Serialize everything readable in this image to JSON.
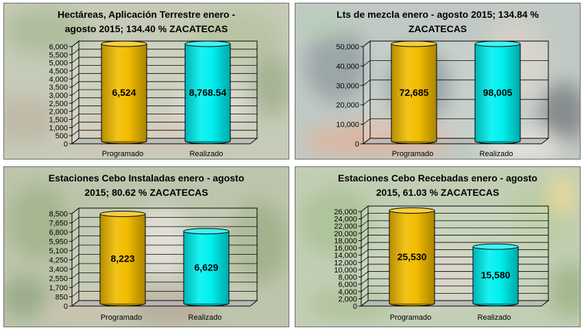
{
  "colors": {
    "programado": "#f2bc00",
    "realizado": "#00f0f0",
    "frame": "#6b6b6b"
  },
  "chart_data": [
    {
      "type": "bar",
      "title": "Hectáreas, Aplicación Terrestre enero -\nagosto  2015;  134.40 %  ZACATECAS",
      "categories": [
        "Programado",
        "Realizado"
      ],
      "values": [
        6524,
        8768.54
      ],
      "data_labels": [
        "6,524",
        "8,768.54"
      ],
      "yticks": [
        0,
        500,
        1000,
        1500,
        2000,
        2500,
        3000,
        3500,
        4000,
        4500,
        5000,
        5500,
        6000
      ],
      "ytick_labels": [
        "0",
        "500",
        "1,000",
        "1,500",
        "2,000",
        "2,500",
        "3,000",
        "3,500",
        "4,000",
        "4,500",
        "5,000",
        "5,500",
        "6,000"
      ],
      "ylim": [
        0,
        6000
      ],
      "background": "field"
    },
    {
      "type": "bar",
      "title": "Lts de mezcla  enero - agosto 2015;  134.84 %\nZACATECAS",
      "categories": [
        "Programado",
        "Realizado"
      ],
      "values": [
        72685,
        98005
      ],
      "data_labels": [
        "72,685",
        "98,005"
      ],
      "yticks": [
        0,
        10000,
        20000,
        30000,
        40000,
        50000
      ],
      "ytick_labels": [
        "0",
        "10,000",
        "20,000",
        "30,000",
        "40,000",
        "50,000"
      ],
      "ylim": [
        0,
        50000
      ],
      "background": "people"
    },
    {
      "type": "bar",
      "title": "Estaciones Cebo Instaladas enero -  agosto\n2015;  80.62 %  ZACATECAS",
      "categories": [
        "Programado",
        "Realizado"
      ],
      "values": [
        8223,
        6629
      ],
      "data_labels": [
        "8,223",
        "6,629"
      ],
      "yticks": [
        0,
        850,
        1700,
        2550,
        3400,
        4250,
        5100,
        5950,
        6800,
        7650,
        8500
      ],
      "ytick_labels": [
        "0",
        "850",
        "1,700",
        "2,550",
        "3,400",
        "4,250",
        "5,100",
        "5,950",
        "6,800",
        "7,650",
        "8,500"
      ],
      "ylim": [
        0,
        8500
      ],
      "background": "orchard"
    },
    {
      "type": "bar",
      "title": "Estaciones Cebo Recebadas  enero - agosto\n2015,  61.03 %  ZACATECAS",
      "categories": [
        "Programado",
        "Realizado"
      ],
      "values": [
        25530,
        15580
      ],
      "data_labels": [
        "25,530",
        "15,580"
      ],
      "yticks": [
        0,
        2000,
        4000,
        6000,
        8000,
        10000,
        12000,
        14000,
        16000,
        18000,
        20000,
        22000,
        24000,
        26000
      ],
      "ytick_labels": [
        "0",
        "2,000",
        "4,000",
        "6,000",
        "8,000",
        "10,000",
        "12,000",
        "14,000",
        "16,000",
        "18,000",
        "20,000",
        "22,000",
        "24,000",
        "26,000"
      ],
      "ylim": [
        0,
        26000
      ],
      "background": "foliage"
    }
  ]
}
